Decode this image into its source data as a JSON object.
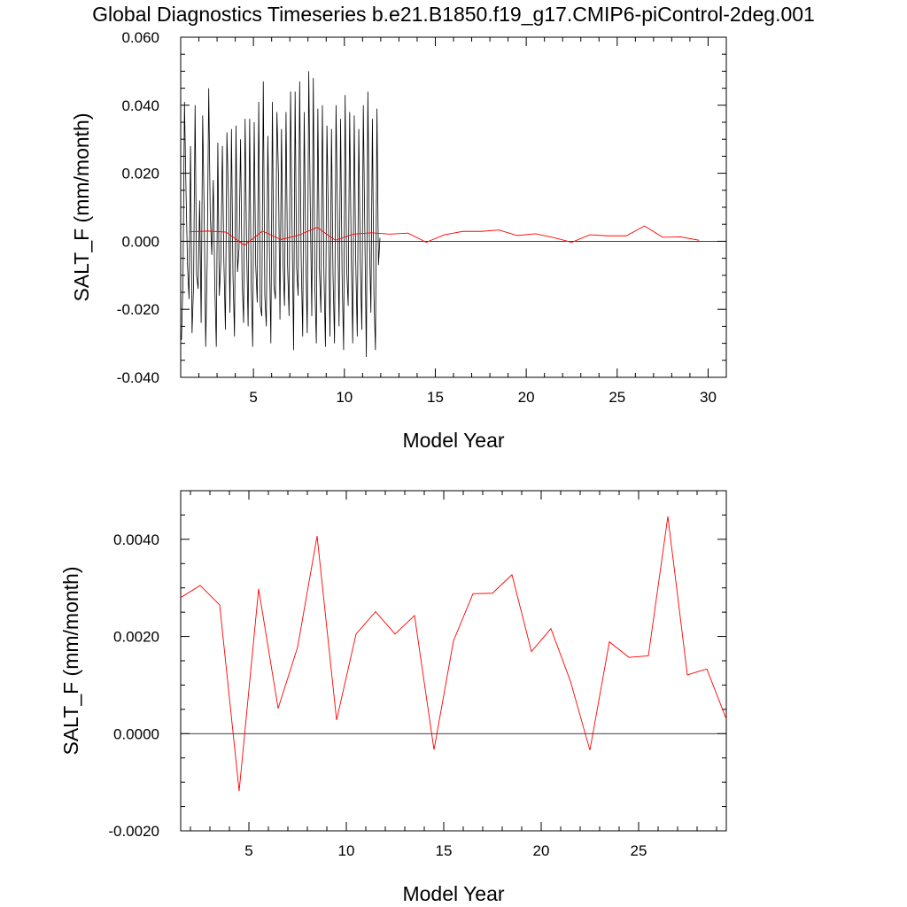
{
  "title": "Global Diagnostics Timeseries b.e21.B1850.f19_g17.CMIP6-piControl-2deg.001",
  "chart_data": [
    {
      "type": "line",
      "xlabel": "Model Year",
      "ylabel": "SALT_F (mm/month)",
      "xlim": [
        1,
        31
      ],
      "ylim": [
        -0.04,
        0.06
      ],
      "xticks": [
        5,
        10,
        15,
        20,
        25,
        30
      ],
      "xtick_labels": [
        "5",
        "10",
        "15",
        "20",
        "25",
        "30"
      ],
      "yticks": [
        -0.04,
        -0.02,
        0.0,
        0.02,
        0.04,
        0.06
      ],
      "ytick_labels": [
        "-0.040",
        "-0.020",
        "0.000",
        "0.020",
        "0.040",
        "0.060"
      ],
      "zero_line": true,
      "grid": false,
      "series": [
        {
          "color": "#000000",
          "style": "monthly",
          "values": [
            -0.029,
            -0.012,
            0.041,
            0.015,
            -0.007,
            -0.017,
            0.028,
            -0.027,
            -0.013,
            0.04,
            -0.01,
            -0.014,
            0.012,
            -0.024,
            0.037,
            0.008,
            -0.031,
            -0.006,
            0.045,
            0.008,
            -0.004,
            0.018,
            -0.013,
            -0.031,
            0.029,
            -0.016,
            -0.006,
            0.028,
            -0.006,
            -0.026,
            0.032,
            0.013,
            -0.021,
            0.033,
            -0.01,
            -0.028,
            0.034,
            -0.009,
            -0.002,
            0.03,
            -0.011,
            -0.024,
            0.036,
            -0.002,
            -0.025,
            0.036,
            -0.012,
            -0.031,
            0.035,
            -0.007,
            -0.018,
            0.041,
            -0.019,
            -0.022,
            0.047,
            -0.016,
            -0.025,
            0.031,
            -0.002,
            -0.03,
            0.041,
            -0.013,
            -0.017,
            0.038,
            0.02,
            -0.023,
            0.033,
            -0.006,
            -0.019,
            0.038,
            -0.007,
            -0.022,
            0.044,
            0.004,
            -0.032,
            0.044,
            -0.008,
            -0.016,
            0.047,
            -0.005,
            -0.028,
            0.038,
            -0.004,
            -0.027,
            0.05,
            0.01,
            -0.022,
            0.048,
            -0.013,
            -0.03,
            0.039,
            -0.008,
            -0.021,
            0.04,
            -0.009,
            -0.031,
            0.034,
            0.005,
            -0.028,
            0.033,
            -0.01,
            -0.03,
            0.04,
            0.006,
            -0.025,
            0.036,
            -0.01,
            -0.032,
            0.043,
            -0.008,
            -0.019,
            0.038,
            -0.003,
            -0.03,
            0.037,
            -0.006,
            -0.028,
            0.033,
            -0.006,
            -0.026,
            0.04,
            0.002,
            -0.034,
            0.044,
            0.001,
            -0.021,
            0.036,
            -0.016,
            -0.032,
            0.039,
            -0.007,
            0.001
          ]
        },
        {
          "color": "#ff0000",
          "style": "annual",
          "x": [
            1.5,
            2.5,
            3.5,
            4.5,
            5.5,
            6.5,
            7.5,
            8.5,
            9.5,
            10.5,
            11.5,
            12.5,
            13.5,
            14.5,
            15.5,
            16.5,
            17.5,
            18.5,
            19.5,
            20.5,
            21.5,
            22.5,
            23.5,
            24.5,
            25.5,
            26.5,
            27.5,
            28.5,
            29.5
          ],
          "values": [
            0.0028,
            0.003,
            0.0027,
            -0.0012,
            0.003,
            0.0005,
            0.0018,
            0.0041,
            0.0003,
            0.0021,
            0.0025,
            0.0021,
            0.0024,
            -0.0003,
            0.0019,
            0.0029,
            0.0029,
            0.0033,
            0.0017,
            0.0022,
            0.0011,
            -0.0003,
            0.0019,
            0.0016,
            0.0016,
            0.0045,
            0.0012,
            0.0013,
            0.0003
          ]
        }
      ]
    },
    {
      "type": "line",
      "xlabel": "Model Year",
      "ylabel": "SALT_F (mm/month)",
      "xlim": [
        1.5,
        29.5
      ],
      "ylim": [
        -0.002,
        0.005
      ],
      "xticks": [
        5,
        10,
        15,
        20,
        25
      ],
      "xtick_labels": [
        "5",
        "10",
        "15",
        "20",
        "25"
      ],
      "yticks": [
        -0.002,
        0.0,
        0.002,
        0.004
      ],
      "ytick_labels": [
        "-0.0020",
        "0.0000",
        "0.0020",
        "0.0040"
      ],
      "zero_line": true,
      "grid": false,
      "series": [
        {
          "color": "#ff0000",
          "style": "annual",
          "x": [
            1.5,
            2.5,
            3.5,
            4.5,
            5.5,
            6.5,
            7.5,
            8.5,
            9.5,
            10.5,
            11.5,
            12.5,
            13.5,
            14.5,
            15.5,
            16.5,
            17.5,
            18.5,
            19.5,
            20.5,
            21.5,
            22.5,
            23.5,
            24.5,
            25.5,
            26.5,
            27.5,
            28.5,
            29.5
          ],
          "values": [
            0.0028,
            0.00305,
            0.00265,
            -0.00118,
            0.00298,
            0.00052,
            0.00178,
            0.00407,
            0.00028,
            0.00205,
            0.00251,
            0.00205,
            0.00243,
            -0.00033,
            0.00191,
            0.00288,
            0.00289,
            0.00327,
            0.00169,
            0.00216,
            0.00108,
            -0.00034,
            0.00189,
            0.00157,
            0.0016,
            0.00447,
            0.00121,
            0.00133,
            0.0003
          ]
        }
      ]
    }
  ]
}
